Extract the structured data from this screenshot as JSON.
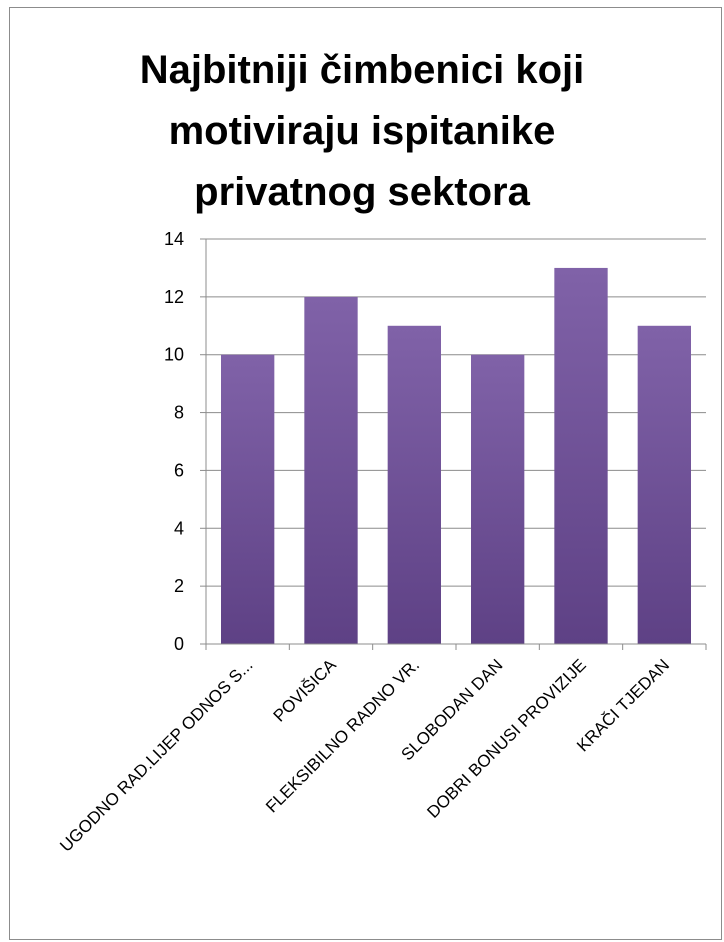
{
  "chart_data": {
    "type": "bar",
    "title_lines": [
      "Najbitniji čimbenici koji",
      "motiviraju ispitanike",
      "privatnog sektora"
    ],
    "categories": [
      "UGODNO RAD.LIJEP ODNOS S...",
      "POVIŠICA",
      "FLEKSIBILNO RADNO VR.",
      "SLOBODAN DAN",
      "DOBRI BONUSI PROVIZIJE",
      "KRAČI TJEDAN"
    ],
    "values": [
      10,
      12,
      11,
      10,
      13,
      11
    ],
    "ylim": [
      0,
      14
    ],
    "yticks": [
      0,
      2,
      4,
      6,
      8,
      10,
      12,
      14
    ],
    "grid": true,
    "legend": "none",
    "colors": {
      "bar_top": "#8062a8",
      "bar_bottom": "#5e4185",
      "gridline": "#8c8c8c",
      "axis": "#8c8c8c"
    }
  }
}
